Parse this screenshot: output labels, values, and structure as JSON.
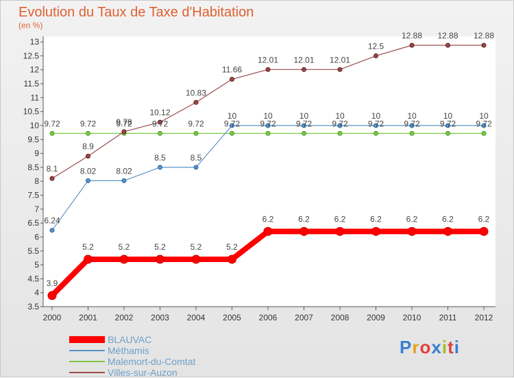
{
  "title": "Evolution du Taux de Taxe d'Habitation",
  "subtitle": "(en %)",
  "logo": {
    "text": "Proxiti",
    "letter_colors": [
      "#3a7fd0",
      "#e8a020",
      "#e04040",
      "#3a7fd0",
      "#a0c020",
      "#e04040",
      "#3a7fd0"
    ]
  },
  "chart_data": {
    "type": "line",
    "x": [
      "2000",
      "2001",
      "2002",
      "2003",
      "2004",
      "2005",
      "2006",
      "2007",
      "2008",
      "2009",
      "2010",
      "2011",
      "2012"
    ],
    "y_ticks": [
      "3.5",
      "4",
      "4.5",
      "5",
      "5.5",
      "6",
      "6.5",
      "7",
      "7.5",
      "8",
      "8.5",
      "9",
      "9.5",
      "10",
      "10.5",
      "11",
      "11.5",
      "12",
      "12.5",
      "13"
    ],
    "ylim": [
      3.5,
      13.2
    ],
    "grid": false,
    "legend_position": "bottom-left",
    "series": [
      {
        "name": "BLAUVAC",
        "color": "#ff0000",
        "values": [
          3.9,
          5.2,
          5.2,
          5.2,
          5.2,
          5.2,
          6.2,
          6.2,
          6.2,
          6.2,
          6.2,
          6.2,
          6.2
        ],
        "labels": [
          "3.9",
          "5.2",
          "5.2",
          "5.2",
          "5.2",
          "5.2",
          "6.2",
          "6.2",
          "6.2",
          "6.2",
          "6.2",
          "6.2",
          "6.2"
        ]
      },
      {
        "name": "Méthamis",
        "color": "#5a93c8",
        "values": [
          6.24,
          8.02,
          8.02,
          8.5,
          8.5,
          10,
          10,
          10,
          10,
          10,
          10,
          10,
          10
        ],
        "labels": [
          "6.24",
          "8.02",
          "8.02",
          "8.5",
          "8.5",
          "10",
          "10",
          "10",
          "10",
          "10",
          "10",
          "10",
          "10"
        ]
      },
      {
        "name": "Malemort-du-Comtat",
        "color": "#7ac943",
        "values": [
          9.72,
          9.72,
          9.72,
          9.72,
          9.72,
          9.72,
          9.72,
          9.72,
          9.72,
          9.72,
          9.72,
          9.72,
          9.72
        ],
        "labels": [
          "9.72",
          "9.72",
          "9.72",
          "9.72",
          "9.72",
          "9.72",
          "9.72",
          "9.72",
          "9.72",
          "9.72",
          "9.72",
          "9.72",
          "9.72"
        ]
      },
      {
        "name": "Villes-sur-Auzon",
        "color": "#9b4a4a",
        "values": [
          8.1,
          8.9,
          9.78,
          10.12,
          10.83,
          11.66,
          12.01,
          12.01,
          12.01,
          12.5,
          12.88,
          12.88,
          12.88
        ],
        "labels": [
          "8.1",
          "8.9",
          "9.78",
          "10.12",
          "10.83",
          "11.66",
          "12.01",
          "12.01",
          "12.01",
          "12.5",
          "12.88",
          "12.88",
          "12.88"
        ]
      }
    ]
  }
}
